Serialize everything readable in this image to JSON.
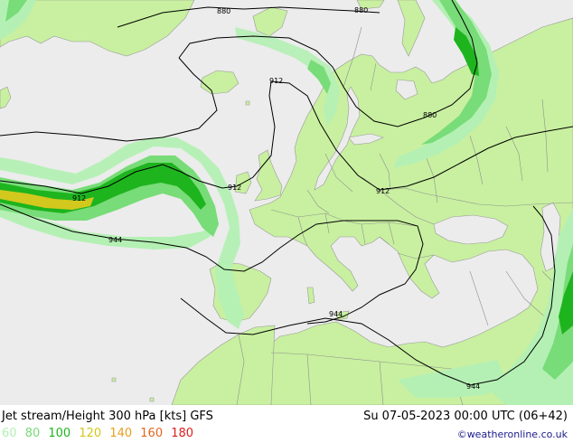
{
  "footer": {
    "title": "Jet stream/Height 300 hPa [kts] GFS",
    "datetime": "Su 07-05-2023 00:00 UTC (06+42)",
    "credit": "©weatheronline.co.uk"
  },
  "legend": [
    {
      "label": "60",
      "color": "#b4f0b4"
    },
    {
      "label": "80",
      "color": "#78dc78"
    },
    {
      "label": "100",
      "color": "#1eb41e"
    },
    {
      "label": "120",
      "color": "#d2c81e"
    },
    {
      "label": "140",
      "color": "#e6a01e"
    },
    {
      "label": "160",
      "color": "#e6641e"
    },
    {
      "label": "180",
      "color": "#dc1e1e"
    }
  ],
  "colors": {
    "land": "#c8f0a0",
    "sea": "#ececec",
    "jet60": "#b4f0b4",
    "jet80": "#78dc78",
    "jet100": "#1eb41e",
    "jet120": "#d2c81e",
    "contour": "#000000",
    "border": "#909090"
  },
  "contour_labels": [
    {
      "id": "880-a",
      "text": "880"
    },
    {
      "id": "880-b",
      "text": "880"
    },
    {
      "id": "880-c",
      "text": "880"
    },
    {
      "id": "912-a",
      "text": "912"
    },
    {
      "id": "912-b",
      "text": "912"
    },
    {
      "id": "912-c",
      "text": "912"
    },
    {
      "id": "912-d",
      "text": "912"
    },
    {
      "id": "944-a",
      "text": "944"
    },
    {
      "id": "944-b",
      "text": "944"
    },
    {
      "id": "944-c",
      "text": "944"
    }
  ]
}
